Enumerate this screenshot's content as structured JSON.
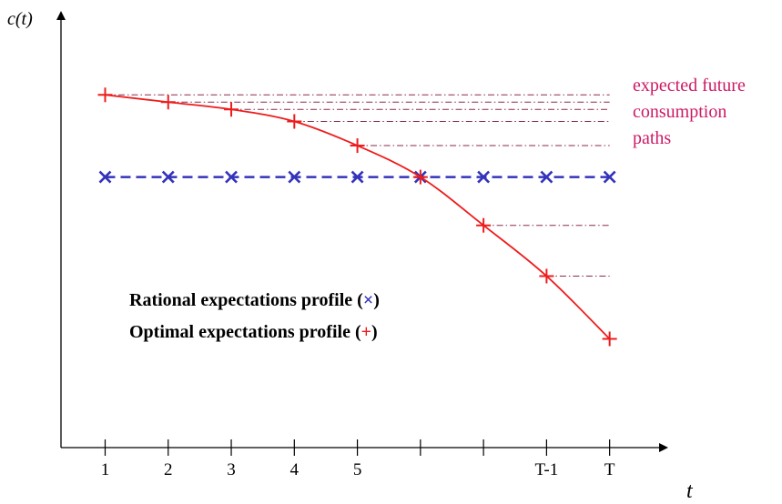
{
  "chart_data": {
    "type": "line",
    "ylabel": "c(t)",
    "xlabel": "t",
    "x": [
      1,
      2,
      3,
      4,
      5,
      6,
      7,
      8,
      9
    ],
    "x_tick_labels": [
      "1",
      "2",
      "3",
      "4",
      "5",
      "",
      "",
      "T-1",
      "T"
    ],
    "series": [
      {
        "name": "Rational expectations profile",
        "marker": "x",
        "color": "#3333bb",
        "style": "dashed",
        "values": [
          5.6,
          5.6,
          5.6,
          5.6,
          5.6,
          5.6,
          5.6,
          5.6,
          5.6
        ]
      },
      {
        "name": "Optimal expectations profile",
        "marker": "+",
        "color": "#ee1c1c",
        "style": "solid-smooth",
        "values": [
          7.3,
          7.15,
          7.0,
          6.75,
          6.25,
          5.6,
          4.6,
          3.55,
          2.25
        ]
      }
    ],
    "expected_future_paths": {
      "color": "#8a2a4a",
      "style": "dash-dot",
      "starts_at": [
        1,
        2,
        3,
        4,
        5,
        7,
        8
      ],
      "levels": [
        7.3,
        7.15,
        7.0,
        6.75,
        6.25,
        4.6,
        3.55
      ],
      "ends_at": 9
    },
    "annotation": "expected future consumption paths",
    "annotation_lines": [
      "expected future",
      "consumption",
      "paths"
    ],
    "legend_lines": [
      {
        "text": "Rational expectations profile (",
        "symbol": "×",
        "color": "#3333bb",
        "close": ")"
      },
      {
        "text": "Optimal expectations profile (",
        "symbol": "+",
        "color": "#ee1c1c",
        "close": ")"
      }
    ],
    "xlim": [
      0.3,
      9.9
    ],
    "ylim": [
      0,
      9
    ],
    "grid": false
  }
}
